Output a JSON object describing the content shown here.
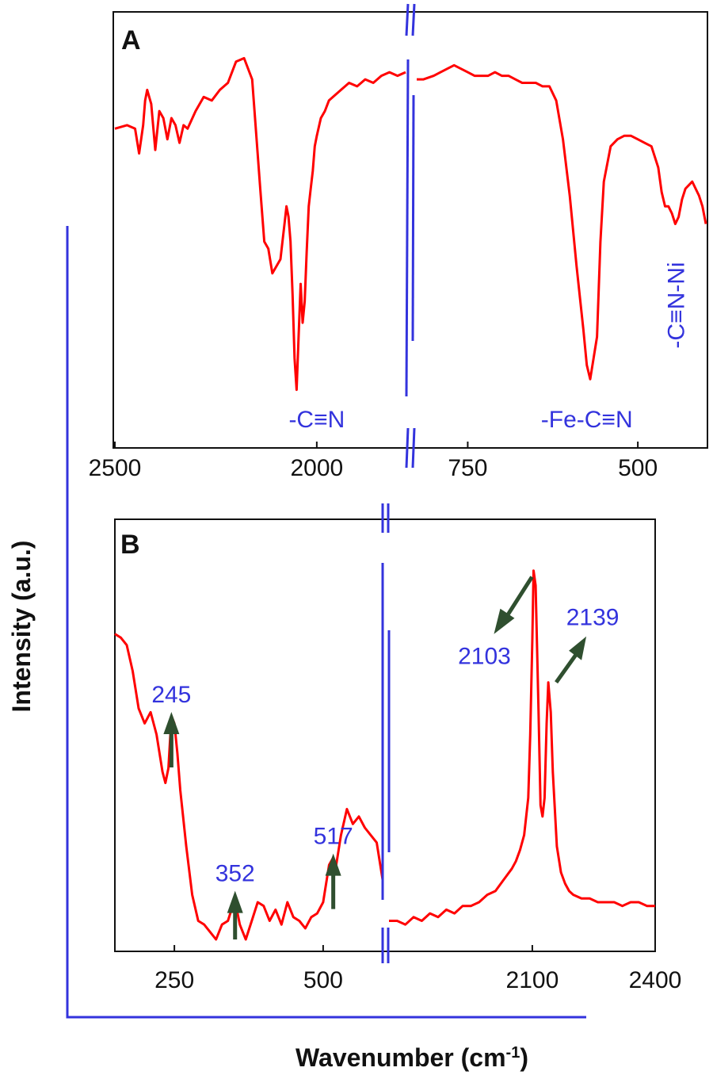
{
  "figure": {
    "ylabel": "Intensity (a.u.)",
    "xlabel": "Wavenumber (cm",
    "xlabel_sup": "-1",
    "xlabel_end": ")"
  },
  "colors": {
    "spectrum": "#ff0000",
    "annotation": "#3333dd",
    "arrow": "#2f4f2f",
    "bracket": "#3333dd",
    "frame": "#111111"
  },
  "chart_data": [
    {
      "panel": "A",
      "type": "line",
      "segments": [
        {
          "xlim": [
            2500,
            1780
          ],
          "ticks": [
            2500,
            2000
          ],
          "x": [
            2500,
            2470,
            2450,
            2440,
            2430,
            2425,
            2420,
            2410,
            2400,
            2390,
            2380,
            2370,
            2360,
            2350,
            2340,
            2330,
            2320,
            2300,
            2280,
            2260,
            2240,
            2220,
            2200,
            2180,
            2160,
            2140,
            2130,
            2120,
            2110,
            2100,
            2090,
            2080,
            2075,
            2070,
            2065,
            2060,
            2055,
            2050,
            2045,
            2040,
            2035,
            2030,
            2025,
            2020,
            2015,
            2010,
            2005,
            2000,
            1990,
            1980,
            1970,
            1960,
            1940,
            1920,
            1900,
            1880,
            1860,
            1840,
            1820,
            1800,
            1780
          ],
          "y": [
            0.77,
            0.78,
            0.77,
            0.7,
            0.78,
            0.85,
            0.88,
            0.84,
            0.71,
            0.82,
            0.8,
            0.74,
            0.8,
            0.78,
            0.73,
            0.78,
            0.77,
            0.82,
            0.86,
            0.85,
            0.88,
            0.9,
            0.96,
            0.97,
            0.91,
            0.6,
            0.45,
            0.43,
            0.36,
            0.38,
            0.4,
            0.5,
            0.55,
            0.52,
            0.45,
            0.3,
            0.12,
            0.03,
            0.18,
            0.33,
            0.22,
            0.28,
            0.42,
            0.55,
            0.6,
            0.65,
            0.72,
            0.75,
            0.8,
            0.82,
            0.85,
            0.86,
            0.88,
            0.9,
            0.89,
            0.91,
            0.9,
            0.92,
            0.93,
            0.92,
            0.93
          ]
        },
        {
          "xlim": [
            825,
            400
          ],
          "ticks": [
            750,
            500
          ],
          "x": [
            825,
            815,
            800,
            790,
            780,
            770,
            760,
            750,
            740,
            720,
            710,
            700,
            690,
            680,
            670,
            660,
            650,
            640,
            630,
            620,
            610,
            600,
            590,
            580,
            575,
            570,
            565,
            560,
            555,
            550,
            540,
            530,
            520,
            510,
            500,
            490,
            480,
            470,
            465,
            460,
            455,
            450,
            445,
            440,
            435,
            430,
            420,
            410,
            405,
            400
          ],
          "y": [
            0.91,
            0.91,
            0.92,
            0.93,
            0.94,
            0.95,
            0.94,
            0.93,
            0.92,
            0.92,
            0.93,
            0.92,
            0.92,
            0.91,
            0.9,
            0.9,
            0.9,
            0.89,
            0.89,
            0.85,
            0.74,
            0.58,
            0.38,
            0.2,
            0.1,
            0.06,
            0.12,
            0.18,
            0.45,
            0.62,
            0.72,
            0.74,
            0.75,
            0.75,
            0.74,
            0.73,
            0.72,
            0.66,
            0.59,
            0.55,
            0.55,
            0.53,
            0.5,
            0.52,
            0.57,
            0.6,
            0.62,
            0.58,
            0.55,
            0.5
          ]
        }
      ],
      "annotations": [
        {
          "text": "-C≡N",
          "x": 2000,
          "segment": 0
        },
        {
          "text": "-Fe-C≡N",
          "x": 575,
          "segment": 1
        },
        {
          "text": "-C≡N-Ni",
          "x": 447,
          "segment": 1,
          "rotated": true
        }
      ]
    },
    {
      "panel": "B",
      "type": "line",
      "segments": [
        {
          "xlim": [
            150,
            600
          ],
          "ticks": [
            250,
            500
          ],
          "x": [
            150,
            160,
            170,
            180,
            190,
            200,
            210,
            220,
            230,
            235,
            240,
            245,
            250,
            255,
            260,
            270,
            280,
            290,
            300,
            310,
            320,
            330,
            340,
            350,
            352,
            355,
            360,
            370,
            380,
            390,
            400,
            410,
            420,
            430,
            440,
            450,
            460,
            470,
            480,
            490,
            500,
            510,
            517,
            520,
            530,
            540,
            550,
            560,
            570,
            580,
            590,
            600
          ],
          "y": [
            0.82,
            0.81,
            0.79,
            0.72,
            0.62,
            0.58,
            0.61,
            0.55,
            0.45,
            0.42,
            0.46,
            0.6,
            0.58,
            0.5,
            0.4,
            0.25,
            0.12,
            0.05,
            0.04,
            0.02,
            0.0,
            0.04,
            0.05,
            0.1,
            0.12,
            0.08,
            0.04,
            0.0,
            0.05,
            0.1,
            0.09,
            0.05,
            0.08,
            0.04,
            0.1,
            0.06,
            0.05,
            0.03,
            0.06,
            0.07,
            0.1,
            0.2,
            0.22,
            0.18,
            0.28,
            0.35,
            0.31,
            0.33,
            0.3,
            0.28,
            0.26,
            0.16
          ]
        },
        {
          "xlim": [
            1750,
            2400
          ],
          "ticks": [
            2100,
            2400
          ],
          "x": [
            1750,
            1770,
            1790,
            1810,
            1830,
            1850,
            1870,
            1890,
            1910,
            1930,
            1950,
            1970,
            1990,
            2010,
            2030,
            2050,
            2060,
            2070,
            2080,
            2090,
            2095,
            2100,
            2103,
            2108,
            2115,
            2120,
            2125,
            2130,
            2135,
            2139,
            2145,
            2150,
            2160,
            2170,
            2180,
            2190,
            2200,
            2220,
            2240,
            2260,
            2280,
            2300,
            2320,
            2340,
            2360,
            2380,
            2400
          ],
          "y": [
            0.05,
            0.05,
            0.04,
            0.06,
            0.05,
            0.07,
            0.06,
            0.08,
            0.07,
            0.09,
            0.09,
            0.1,
            0.12,
            0.13,
            0.16,
            0.19,
            0.21,
            0.24,
            0.28,
            0.38,
            0.55,
            0.8,
            0.99,
            0.95,
            0.62,
            0.36,
            0.33,
            0.38,
            0.58,
            0.69,
            0.61,
            0.45,
            0.25,
            0.18,
            0.15,
            0.13,
            0.12,
            0.11,
            0.11,
            0.1,
            0.1,
            0.1,
            0.09,
            0.1,
            0.1,
            0.09,
            0.09
          ]
        }
      ],
      "annotations": [
        {
          "text": "245",
          "x": 245,
          "segment": 0
        },
        {
          "text": "352",
          "x": 352,
          "segment": 0
        },
        {
          "text": "517",
          "x": 517,
          "segment": 0
        },
        {
          "text": "2103",
          "x": 2103,
          "segment": 1
        },
        {
          "text": "2139",
          "x": 2139,
          "segment": 1
        }
      ]
    }
  ]
}
